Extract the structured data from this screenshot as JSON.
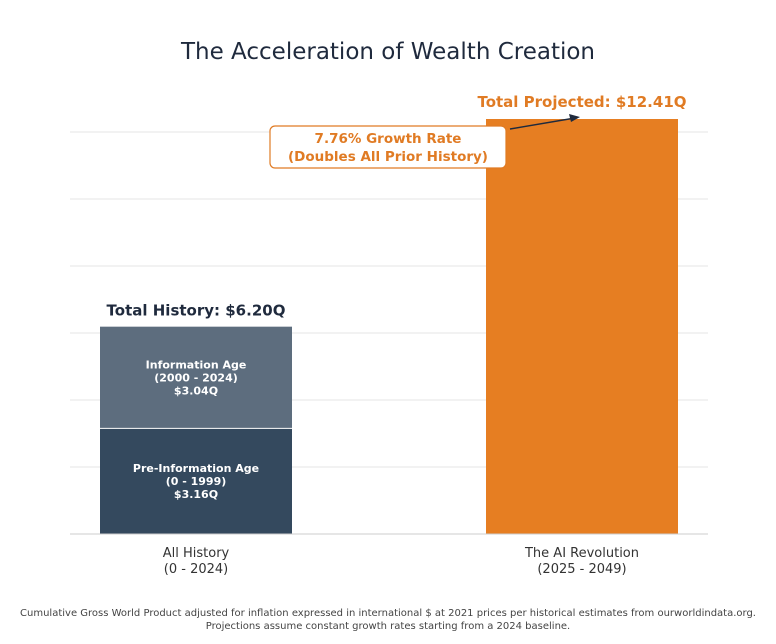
{
  "chart_data": {
    "type": "bar",
    "stacked": true,
    "title": "The Acceleration of Wealth Creation",
    "ylim": [
      0,
      12.41
    ],
    "grid": true,
    "categories": [
      {
        "label": [
          "All History",
          "(0 - 2024)"
        ],
        "total_label": "Total History: $6.20Q",
        "total": 6.2
      },
      {
        "label": [
          "The AI Revolution",
          "(2025 - 2049)"
        ],
        "total_label": "Total Projected: $12.41Q",
        "total": 12.41
      }
    ],
    "segments": [
      {
        "category": 0,
        "name": "Pre-Information Age",
        "period": "(0 - 1999)",
        "value_label": "$3.16Q",
        "value": 3.16
      },
      {
        "category": 0,
        "name": "Information Age",
        "period": "(2000 - 2024)",
        "value_label": "$3.04Q",
        "value": 3.04
      },
      {
        "category": 1,
        "name": "The AI Revolution",
        "value": 12.41
      }
    ],
    "annotation": {
      "lines": [
        "7.76% Growth Rate",
        "(Doubles All Prior History)"
      ]
    },
    "footnote": [
      "Cumulative Gross World Product adjusted for inflation expressed in international $ at 2021 prices per historical estimates from ourworldindata.org.",
      "Projections assume constant growth rates starting from a 2024 baseline."
    ]
  },
  "colors": {
    "pre_info": "#34495e",
    "info": "#5d6d7e",
    "ai": "#e67e22",
    "grid": "#e6e6e6",
    "annotation": "#e07b24",
    "history_total": "#1f2a3d"
  }
}
